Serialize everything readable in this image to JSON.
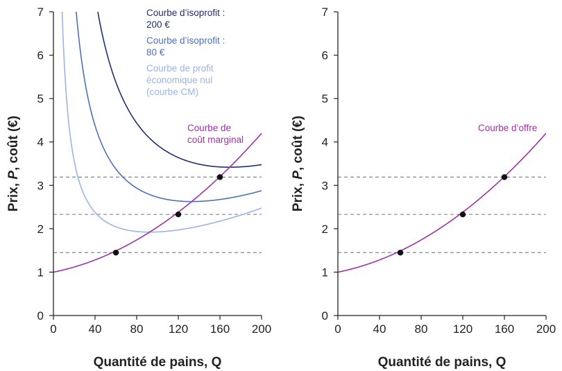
{
  "colors": {
    "isoprofit_200": "#1f2f6e",
    "isoprofit_80": "#4f6fbd",
    "zero_profit": "#9ab4e4",
    "marginal_cost": "#a030a8",
    "dashed": "#7f8898",
    "axis": "#222222",
    "point": "#111111"
  },
  "chart_data": [
    {
      "type": "line",
      "panel": "left",
      "xlabel": "Quantité de pains,",
      "xlabel_var": "Q",
      "ylabel_pre": "Prix, ",
      "ylabel_var": "P",
      "ylabel_post": ", coût (€)",
      "xlim": [
        0,
        200
      ],
      "ylim": [
        0,
        7
      ],
      "x_ticks": [
        "0",
        "40",
        "80",
        "120",
        "160",
        "200"
      ],
      "y_ticks": [
        "0",
        "1",
        "2",
        "3",
        "4",
        "5",
        "6",
        "7"
      ],
      "x_tick_values": [
        0,
        40,
        80,
        120,
        160,
        200
      ],
      "y_tick_values": [
        0,
        1,
        2,
        3,
        4,
        5,
        6,
        7
      ],
      "series": [
        {
          "name": "Courbe d’isoprofit : 200 €",
          "label_lines": [
            "Courbe d’isoprofit :",
            "200 €"
          ],
          "kind": "isoprofit",
          "profit": 200,
          "color_key": "isoprofit_200"
        },
        {
          "name": "Courbe d’isoprofit : 80 €",
          "label_lines": [
            "Courbe d’isoprofit :",
            "80 €"
          ],
          "kind": "isoprofit",
          "profit": 80,
          "color_key": "isoprofit_80"
        },
        {
          "name": "Courbe de profit économique nul (courbe CM)",
          "label_lines": [
            "Courbe de profit",
            "économique nul",
            "(courbe CM)"
          ],
          "kind": "isoprofit",
          "profit": 0,
          "color_key": "zero_profit"
        },
        {
          "name": "Courbe de coût marginal",
          "label_lines": [
            "Courbe de",
            "coût marginal"
          ],
          "kind": "marginal_cost",
          "color_key": "marginal_cost"
        }
      ],
      "marginal_cost": {
        "x": [
          0,
          40,
          80,
          120,
          160,
          200
        ],
        "y": [
          1.0,
          1.2,
          1.7,
          2.33,
          3.19,
          4.2
        ]
      },
      "average_cost_params": {
        "fixed_cost": 50,
        "mc_intercept": 1.0,
        "mc_a": 0.0048,
        "mc_b": 5.6e-05
      },
      "points": [
        {
          "x": 60,
          "y": 1.45
        },
        {
          "x": 120,
          "y": 2.33
        },
        {
          "x": 160,
          "y": 3.19
        }
      ],
      "dashed_levels": [
        1.45,
        2.33,
        3.19
      ]
    },
    {
      "type": "line",
      "panel": "right",
      "xlabel": "Quantité de pains,",
      "xlabel_var": "Q",
      "ylabel_pre": "Prix, ",
      "ylabel_var": "P",
      "ylabel_post": ", coût (€)",
      "xlim": [
        0,
        200
      ],
      "ylim": [
        0,
        7
      ],
      "x_ticks": [
        "0",
        "40",
        "80",
        "120",
        "160",
        "200"
      ],
      "y_ticks": [
        "0",
        "1",
        "2",
        "3",
        "4",
        "5",
        "6",
        "7"
      ],
      "x_tick_values": [
        0,
        40,
        80,
        120,
        160,
        200
      ],
      "y_tick_values": [
        0,
        1,
        2,
        3,
        4,
        5,
        6,
        7
      ],
      "series": [
        {
          "name": "Courbe d’offre",
          "label_lines": [
            "Courbe d’offre"
          ],
          "kind": "marginal_cost",
          "color_key": "marginal_cost"
        }
      ],
      "marginal_cost": {
        "x": [
          0,
          40,
          80,
          120,
          160,
          200
        ],
        "y": [
          1.0,
          1.2,
          1.7,
          2.33,
          3.19,
          4.2
        ]
      },
      "average_cost_params": {
        "fixed_cost": 50,
        "mc_intercept": 1.0,
        "mc_a": 0.0048,
        "mc_b": 5.6e-05
      },
      "points": [
        {
          "x": 60,
          "y": 1.45
        },
        {
          "x": 120,
          "y": 2.33
        },
        {
          "x": 160,
          "y": 3.19
        }
      ],
      "dashed_levels": [
        1.45,
        2.33,
        3.19
      ]
    }
  ]
}
